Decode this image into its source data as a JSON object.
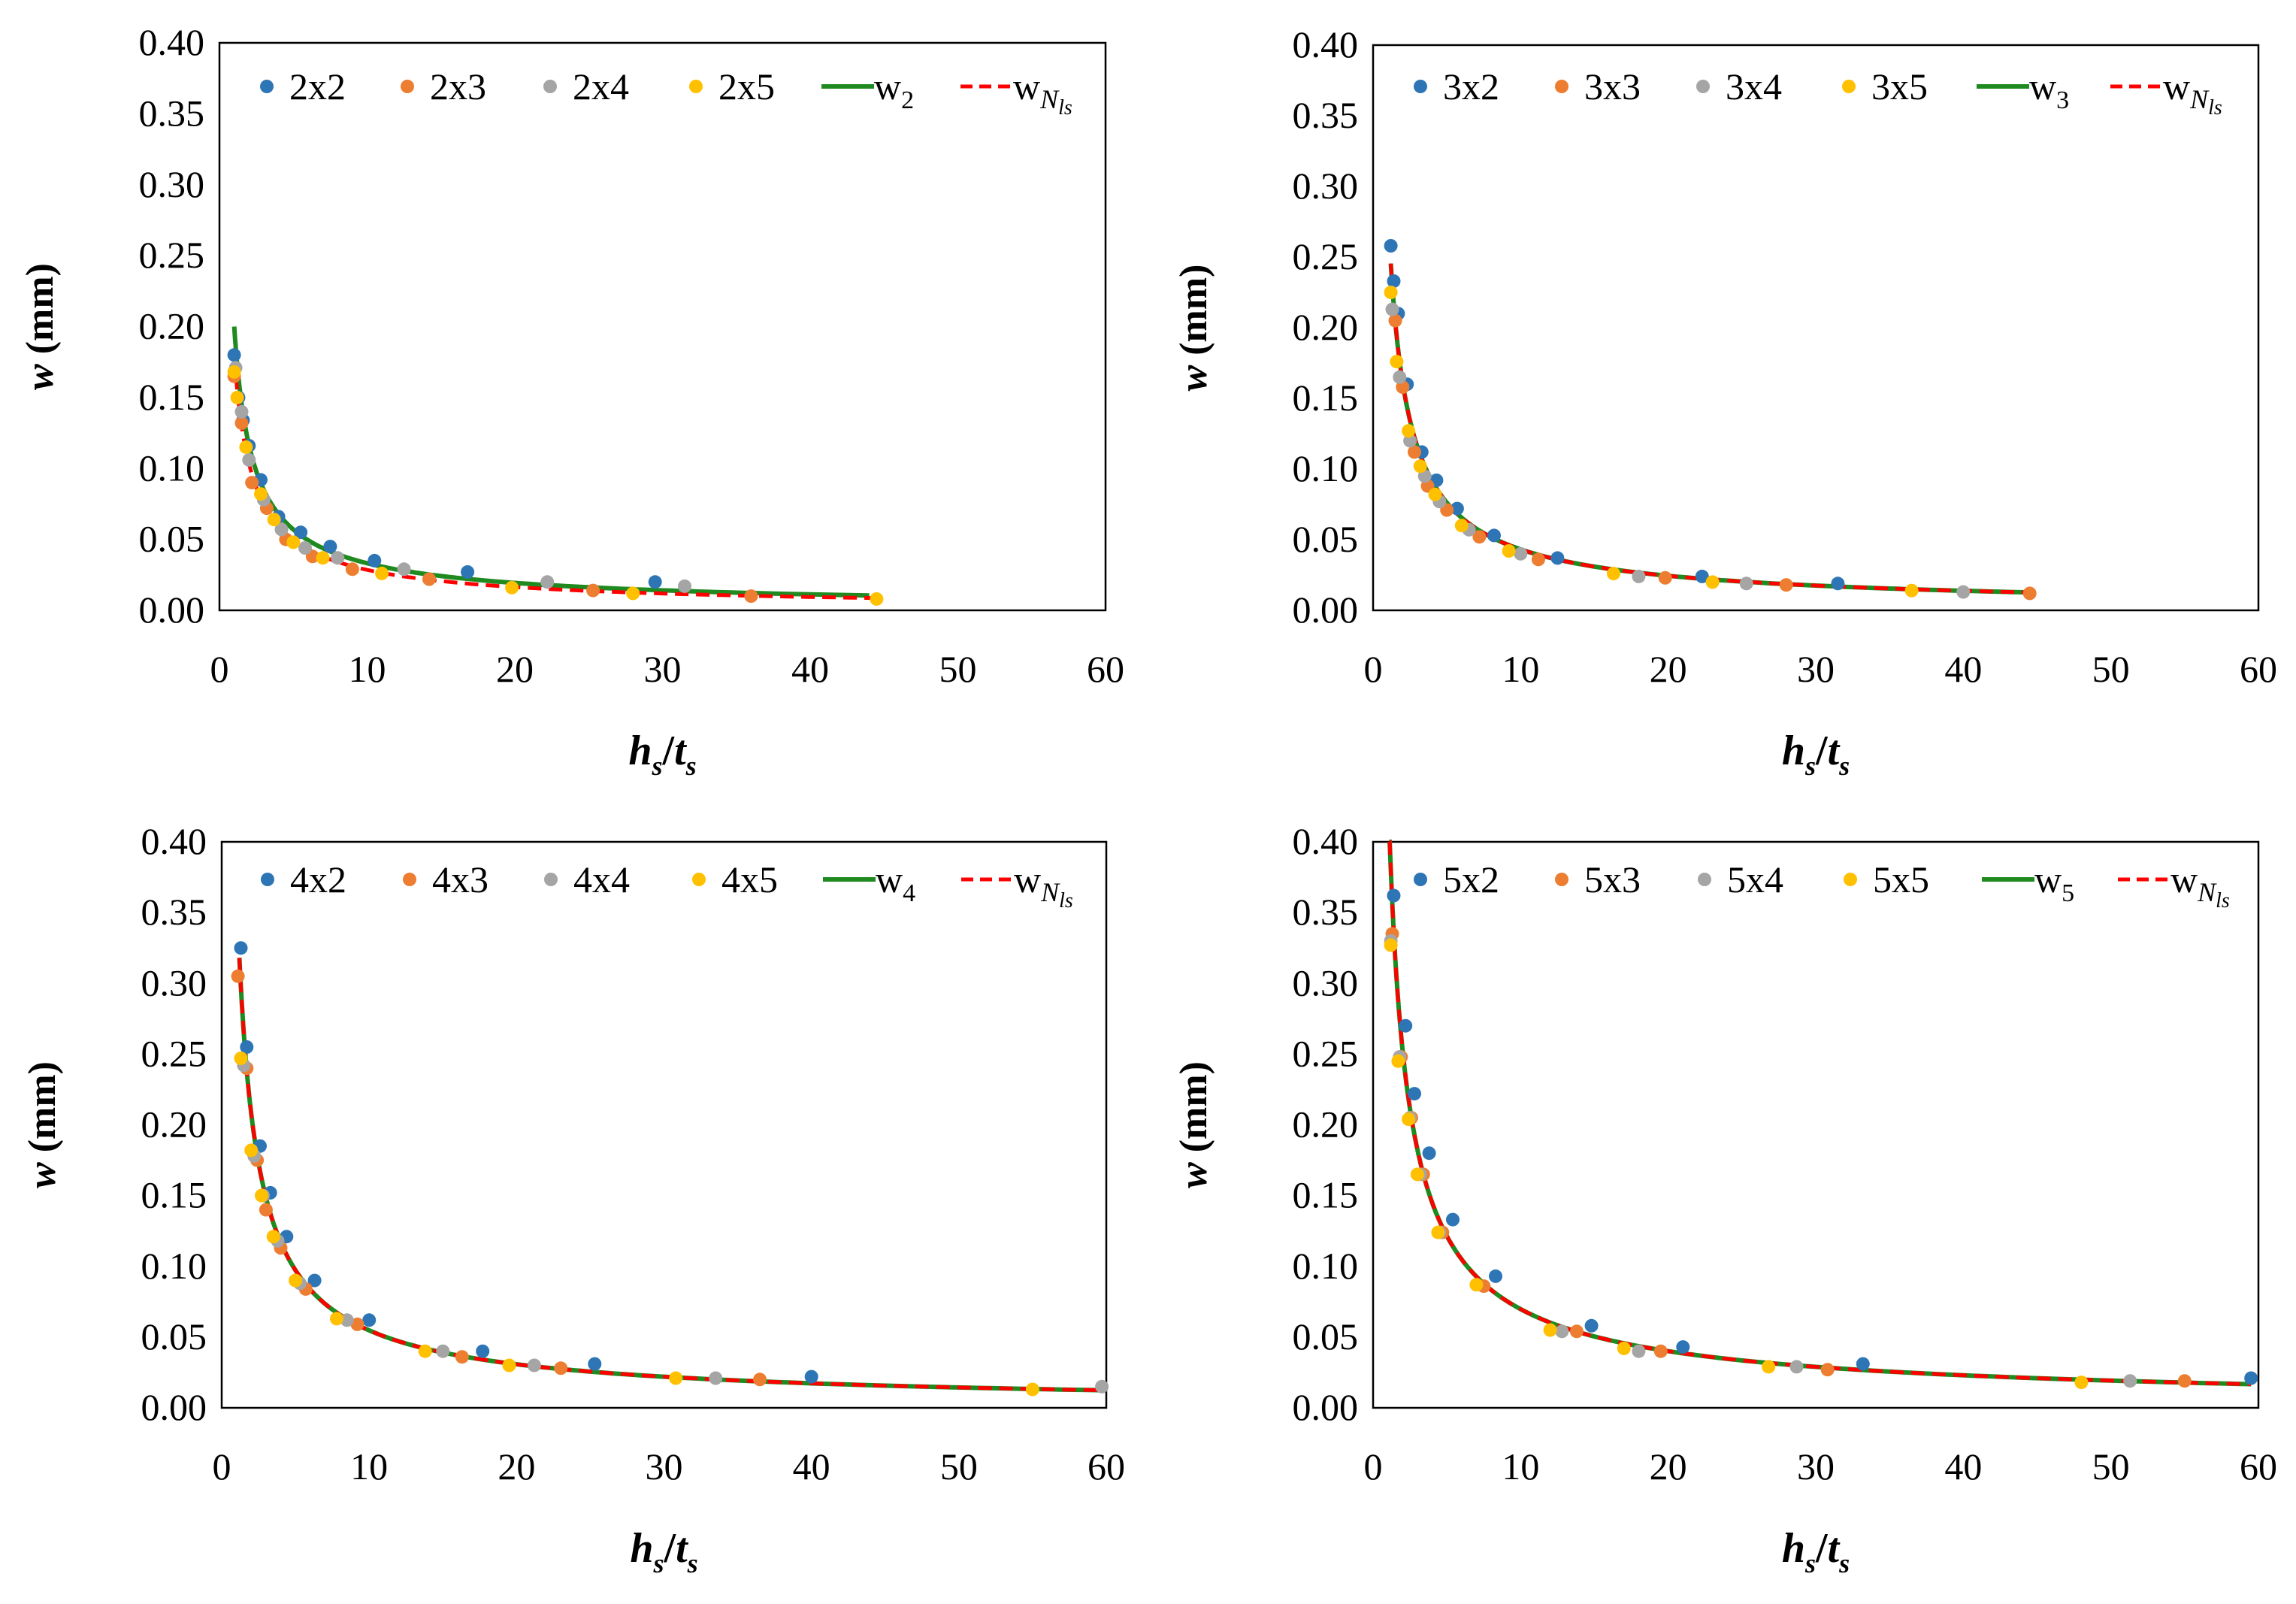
{
  "colors": {
    "c1": "#2E75B6",
    "c2": "#ED7D31",
    "c3": "#A5A5A5",
    "c4": "#FFC000",
    "model": "#1F8A1F",
    "fit": "#FF0000",
    "frame": "#000000"
  },
  "chart_data": [
    {
      "type": "scatter",
      "xlabel_main": "h",
      "xlabel_sub1": "s",
      "xlabel_sep": "/",
      "xlabel_main2": "t",
      "xlabel_sub2": "s",
      "ylabel_main": "w",
      "ylabel_unit": " (mm)",
      "xlim": [
        0,
        60
      ],
      "ylim": [
        0,
        0.4
      ],
      "xticks": [
        "0",
        "10",
        "20",
        "30",
        "40",
        "50",
        "60"
      ],
      "yticks": [
        "0.00",
        "0.05",
        "0.10",
        "0.15",
        "0.20",
        "0.25",
        "0.30",
        "0.35",
        "0.40"
      ],
      "legend": {
        "s1": "2x2",
        "s2": "2x3",
        "s3": "2x4",
        "s4": "2x5",
        "model_main": "w",
        "model_sub": "2",
        "fit_main": "w",
        "fit_sub_main": "N",
        "fit_sub_sub": "ls"
      },
      "series": [
        {
          "name": "2x2",
          "color": "#2E75B6",
          "x": [
            1.0,
            1.3,
            1.6,
            2.0,
            2.8,
            4.0,
            5.5,
            7.5,
            10.5,
            16.8,
            29.5
          ],
          "y": [
            0.18,
            0.15,
            0.134,
            0.116,
            0.092,
            0.066,
            0.055,
            0.045,
            0.035,
            0.027,
            0.02
          ]
        },
        {
          "name": "2x3",
          "color": "#ED7D31",
          "x": [
            1.0,
            1.5,
            2.2,
            3.2,
            4.5,
            6.3,
            9.0,
            14.2,
            25.3,
            36.0
          ],
          "y": [
            0.165,
            0.132,
            0.09,
            0.072,
            0.05,
            0.038,
            0.029,
            0.022,
            0.014,
            0.01
          ]
        },
        {
          "name": "2x4",
          "color": "#A5A5A5",
          "x": [
            1.1,
            1.5,
            2.0,
            3.0,
            4.2,
            5.8,
            8.0,
            12.5,
            22.2,
            31.5
          ],
          "y": [
            0.171,
            0.14,
            0.106,
            0.078,
            0.057,
            0.044,
            0.037,
            0.029,
            0.02,
            0.017
          ]
        },
        {
          "name": "2x5",
          "color": "#FFC000",
          "x": [
            1.0,
            1.2,
            1.8,
            2.8,
            3.7,
            5.0,
            7.0,
            11.0,
            19.8,
            28.0,
            44.5
          ],
          "y": [
            0.168,
            0.15,
            0.115,
            0.082,
            0.064,
            0.048,
            0.037,
            0.026,
            0.016,
            0.012,
            0.008
          ]
        }
      ],
      "curves": [
        {
          "name": "model",
          "color": "#1F8A1F",
          "a": 0.2,
          "b": -0.78,
          "x0": 1.0,
          "x1": 44
        },
        {
          "name": "fit",
          "color": "#FF0000",
          "a": 0.18,
          "b": -0.8,
          "x0": 1.0,
          "x1": 44.5
        }
      ]
    },
    {
      "type": "scatter",
      "xlabel_main": "h",
      "xlabel_sub1": "s",
      "xlabel_sep": "/",
      "xlabel_main2": "t",
      "xlabel_sub2": "s",
      "ylabel_main": "w",
      "ylabel_unit": " (mm)",
      "xlim": [
        0,
        60
      ],
      "ylim": [
        0,
        0.4
      ],
      "xticks": [
        "0",
        "10",
        "20",
        "30",
        "40",
        "50",
        "60"
      ],
      "yticks": [
        "0.00",
        "0.05",
        "0.10",
        "0.15",
        "0.20",
        "0.25",
        "0.30",
        "0.35",
        "0.40"
      ],
      "legend": {
        "s1": "3x2",
        "s2": "3x3",
        "s3": "3x4",
        "s4": "3x5",
        "model_main": "w",
        "model_sub": "3",
        "fit_main": "w",
        "fit_sub_main": "N",
        "fit_sub_sub": "ls"
      },
      "series": [
        {
          "name": "3x2",
          "color": "#2E75B6",
          "x": [
            1.2,
            1.4,
            1.7,
            2.3,
            3.3,
            4.3,
            5.7,
            8.2,
            12.5,
            22.3,
            31.5
          ],
          "y": [
            0.258,
            0.233,
            0.21,
            0.16,
            0.112,
            0.092,
            0.072,
            0.053,
            0.037,
            0.024,
            0.019
          ]
        },
        {
          "name": "3x3",
          "color": "#ED7D31",
          "x": [
            1.5,
            2.0,
            2.8,
            3.7,
            5.0,
            7.2,
            11.2,
            19.8,
            28.0,
            44.5
          ],
          "y": [
            0.205,
            0.158,
            0.112,
            0.088,
            0.071,
            0.052,
            0.036,
            0.023,
            0.018,
            0.012
          ]
        },
        {
          "name": "3x4",
          "color": "#A5A5A5",
          "x": [
            1.3,
            1.8,
            2.5,
            3.5,
            4.5,
            6.5,
            10.0,
            18.0,
            25.3,
            40.0
          ],
          "y": [
            0.213,
            0.165,
            0.12,
            0.095,
            0.077,
            0.057,
            0.04,
            0.024,
            0.019,
            0.013
          ]
        },
        {
          "name": "3x5",
          "color": "#FFC000",
          "x": [
            1.2,
            1.6,
            2.4,
            3.2,
            4.2,
            6.0,
            9.2,
            16.3,
            23.0,
            36.5
          ],
          "y": [
            0.225,
            0.176,
            0.127,
            0.102,
            0.082,
            0.06,
            0.042,
            0.026,
            0.02,
            0.014
          ]
        }
      ],
      "curves": [
        {
          "name": "model",
          "color": "#1F8A1F",
          "a": 0.285,
          "b": -0.82,
          "x0": 1.2,
          "x1": 44.5
        },
        {
          "name": "fit",
          "color": "#FF0000",
          "a": 0.285,
          "b": -0.82,
          "x0": 1.2,
          "x1": 44.5
        }
      ]
    },
    {
      "type": "scatter",
      "xlabel_main": "h",
      "xlabel_sub1": "s",
      "xlabel_sep": "/",
      "xlabel_main2": "t",
      "xlabel_sub2": "s",
      "ylabel_main": "w",
      "ylabel_unit": " (mm)",
      "xlim": [
        0,
        60
      ],
      "ylim": [
        0,
        0.4
      ],
      "xticks": [
        "0",
        "10",
        "20",
        "30",
        "40",
        "50",
        "60"
      ],
      "yticks": [
        "0.00",
        "0.05",
        "0.10",
        "0.15",
        "0.20",
        "0.25",
        "0.30",
        "0.35",
        "0.40"
      ],
      "legend": {
        "s1": "4x2",
        "s2": "4x3",
        "s3": "4x4",
        "s4": "4x5",
        "model_main": "w",
        "model_sub": "4",
        "fit_main": "w",
        "fit_sub_main": "N",
        "fit_sub_sub": "ls"
      },
      "series": [
        {
          "name": "4x2",
          "color": "#2E75B6",
          "x": [
            1.3,
            1.7,
            2.6,
            3.3,
            4.4,
            6.3,
            10.0,
            17.7,
            25.3,
            40.0
          ],
          "y": [
            0.325,
            0.255,
            0.185,
            0.152,
            0.121,
            0.09,
            0.062,
            0.04,
            0.031,
            0.022
          ]
        },
        {
          "name": "4x3",
          "color": "#ED7D31",
          "x": [
            1.1,
            1.7,
            2.4,
            3.0,
            4.0,
            5.7,
            9.2,
            16.3,
            23.0,
            36.5
          ],
          "y": [
            0.305,
            0.24,
            0.175,
            0.14,
            0.113,
            0.084,
            0.059,
            0.036,
            0.028,
            0.02
          ]
        },
        {
          "name": "4x4",
          "color": "#A5A5A5",
          "x": [
            1.5,
            2.2,
            2.8,
            3.8,
            5.3,
            8.5,
            15.0,
            21.2,
            33.5,
            59.7
          ],
          "y": [
            0.242,
            0.178,
            0.15,
            0.118,
            0.088,
            0.062,
            0.04,
            0.03,
            0.021,
            0.015
          ]
        },
        {
          "name": "4x5",
          "color": "#FFC000",
          "x": [
            1.3,
            2.0,
            2.7,
            3.5,
            5.0,
            7.8,
            13.8,
            19.5,
            30.8,
            55.0
          ],
          "y": [
            0.247,
            0.182,
            0.15,
            0.121,
            0.09,
            0.063,
            0.04,
            0.03,
            0.021,
            0.013
          ]
        }
      ],
      "curves": [
        {
          "name": "model",
          "color": "#1F8A1F",
          "a": 0.37,
          "b": -0.83,
          "x0": 1.2,
          "x1": 59.7
        },
        {
          "name": "fit",
          "color": "#FF0000",
          "a": 0.37,
          "b": -0.83,
          "x0": 1.2,
          "x1": 59.7
        }
      ]
    },
    {
      "type": "scatter",
      "xlabel_main": "h",
      "xlabel_sub1": "s",
      "xlabel_sep": "/",
      "xlabel_main2": "t",
      "xlabel_sub2": "s",
      "ylabel_main": "w",
      "ylabel_unit": " (mm)",
      "xlim": [
        0,
        60
      ],
      "ylim": [
        0,
        0.4
      ],
      "xticks": [
        "0",
        "10",
        "20",
        "30",
        "40",
        "50",
        "60"
      ],
      "yticks": [
        "0.00",
        "0.05",
        "0.10",
        "0.15",
        "0.20",
        "0.25",
        "0.30",
        "0.35",
        "0.40"
      ],
      "legend": {
        "s1": "5x2",
        "s2": "5x3",
        "s3": "5x4",
        "s4": "5x5",
        "model_main": "w",
        "model_sub": "5",
        "fit_main": "w",
        "fit_sub_main": "N",
        "fit_sub_sub": "ls"
      },
      "series": [
        {
          "name": "5x2",
          "color": "#2E75B6",
          "x": [
            1.4,
            2.2,
            2.8,
            3.8,
            5.4,
            8.3,
            14.8,
            21.0,
            33.2,
            59.5
          ],
          "y": [
            0.362,
            0.27,
            0.222,
            0.18,
            0.133,
            0.093,
            0.058,
            0.043,
            0.031,
            0.021
          ]
        },
        {
          "name": "5x3",
          "color": "#ED7D31",
          "x": [
            1.3,
            1.9,
            2.6,
            3.4,
            4.7,
            7.5,
            13.8,
            19.5,
            30.8,
            55.0
          ],
          "y": [
            0.335,
            0.248,
            0.205,
            0.165,
            0.124,
            0.086,
            0.054,
            0.04,
            0.027,
            0.019
          ]
        },
        {
          "name": "5x4",
          "color": "#A5A5A5",
          "x": [
            1.2,
            1.8,
            2.5,
            3.2,
            4.5,
            7.0,
            12.8,
            18.0,
            28.7,
            51.3
          ],
          "y": [
            0.33,
            0.248,
            0.205,
            0.165,
            0.124,
            0.087,
            0.054,
            0.04,
            0.029,
            0.019
          ]
        },
        {
          "name": "5x5",
          "color": "#FFC000",
          "x": [
            1.2,
            1.7,
            2.4,
            3.0,
            4.4,
            7.0,
            12.0,
            17.0,
            26.8,
            48.0
          ],
          "y": [
            0.327,
            0.245,
            0.204,
            0.165,
            0.124,
            0.087,
            0.055,
            0.042,
            0.029,
            0.018
          ]
        }
      ],
      "curves": [
        {
          "name": "model",
          "color": "#1F8A1F",
          "a": 0.44,
          "b": -0.8,
          "x0": 1.1,
          "x1": 59.5
        },
        {
          "name": "fit",
          "color": "#FF0000",
          "a": 0.44,
          "b": -0.8,
          "x0": 1.1,
          "x1": 59.5
        }
      ]
    }
  ]
}
